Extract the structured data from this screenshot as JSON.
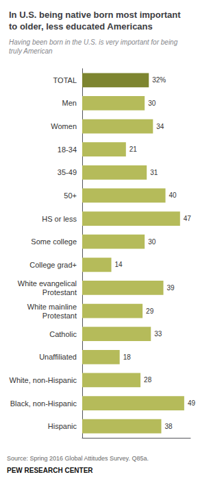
{
  "chart_data": {
    "type": "bar",
    "orientation": "horizontal",
    "title": "In U.S. being native born most important\nto older, less educated Americans",
    "subtitle": "Having been born in the U.S. is very important for being\ntruly American",
    "annotations": [
      "Source: Spring 2016 Global Attitudes Survey. Q85a.",
      "PEW RESEARCH CENTER"
    ],
    "categories": [
      "TOTAL",
      "Men",
      "Women",
      "18-34",
      "35-49",
      "50+",
      "HS or less",
      "Some college",
      "College grad+",
      "White evangelical\nProtestant",
      "White mainline\nProtestant",
      "Catholic",
      "Unaffiliated",
      "White, non-Hispanic",
      "Black, non-Hispanic",
      "Hispanic"
    ],
    "values": [
      32,
      30,
      34,
      21,
      31,
      40,
      47,
      30,
      14,
      39,
      29,
      33,
      18,
      28,
      49,
      38
    ],
    "value_labels": [
      "32%",
      "30",
      "34",
      "21",
      "31",
      "40",
      "47",
      "30",
      "14",
      "39",
      "29",
      "33",
      "18",
      "28",
      "49",
      "38"
    ],
    "colors": [
      "#7d8530",
      "#b5bb5a",
      "#b5bb5a",
      "#b5bb5a",
      "#b5bb5a",
      "#b5bb5a",
      "#b5bb5a",
      "#b5bb5a",
      "#b5bb5a",
      "#b5bb5a",
      "#b5bb5a",
      "#b5bb5a",
      "#b5bb5a",
      "#b5bb5a",
      "#b5bb5a",
      "#b5bb5a"
    ],
    "xlim": [
      0,
      52
    ],
    "data_labels": true,
    "tick_labels": "y",
    "grid": false
  }
}
